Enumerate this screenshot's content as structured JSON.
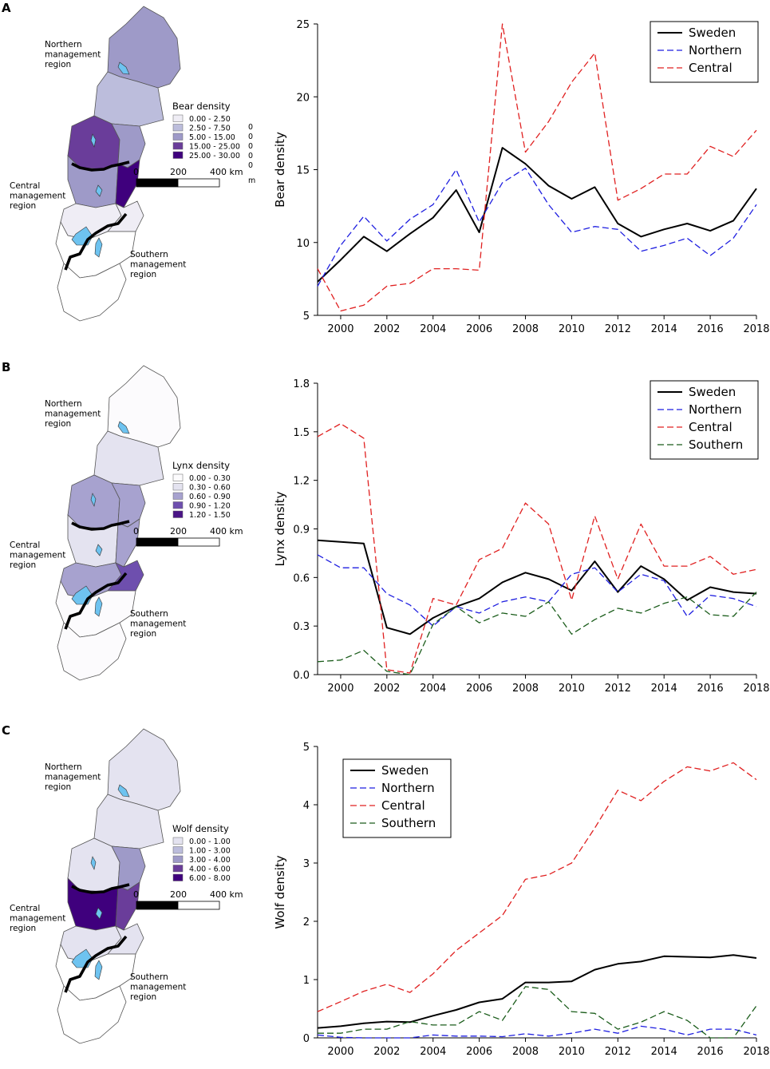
{
  "panels": [
    {
      "id": "A",
      "letter": "A",
      "map": {
        "legend_title": "Bear density",
        "legend_items": [
          "0.00 -   2.50",
          "2.50 -   7.50",
          "5.00 - 15.00",
          "15.00 - 25.00",
          "25.00 - 30.00"
        ],
        "legend_colors": [
          "#efedf5",
          "#bcbddc",
          "#9e9ac8",
          "#6a3d9a",
          "#3f007d"
        ],
        "stray_zeros": [
          "0",
          "0",
          "0",
          "0",
          "0"
        ],
        "stray_m": "m",
        "scale_labels": [
          "0",
          "200",
          "400 km"
        ],
        "region_labels": {
          "northern": [
            "Northern",
            "management",
            "region"
          ],
          "central": [
            "Central",
            "management",
            "region"
          ],
          "southern": [
            "Southern",
            "management",
            "region"
          ]
        },
        "fills": [
          "#9e9ac8",
          "#bcbddc",
          "#6a3d9a",
          "#9e9ac8",
          "#9e9ac8",
          "#3f007d",
          "#efedf5",
          "#efedf5",
          "#ffffff",
          "#ffffff"
        ]
      }
    },
    {
      "id": "B",
      "letter": "B",
      "map": {
        "legend_title": "Lynx density",
        "legend_items": [
          "0.00 - 0.30",
          "0.30 - 0.60",
          "0.60 - 0.90",
          "0.90 - 1.20",
          "1.20 - 1.50"
        ],
        "legend_colors": [
          "#fcfbfd",
          "#e4e3f0",
          "#a7a2cf",
          "#6e4fae",
          "#4a1486"
        ],
        "scale_labels": [
          "0",
          "200",
          "400 km"
        ],
        "region_labels": {
          "northern": [
            "Northern",
            "management",
            "region"
          ],
          "central": [
            "Central",
            "management",
            "region"
          ],
          "southern": [
            "Southern",
            "management",
            "region"
          ]
        },
        "fills": [
          "#fcfbfd",
          "#e4e3f0",
          "#a7a2cf",
          "#a7a2cf",
          "#e4e3f0",
          "#a7a2cf",
          "#a7a2cf",
          "#6e4fae",
          "#fcfbfd",
          "#fcfbfd"
        ]
      }
    },
    {
      "id": "C",
      "letter": "C",
      "map": {
        "legend_title": "Wolf density",
        "legend_items": [
          "0.00 - 1.00",
          "1.00 - 3.00",
          "3.00 - 4.00",
          "4.00 - 6.00",
          "6.00 - 8.00"
        ],
        "legend_colors": [
          "#e4e3f0",
          "#bcbddc",
          "#9e9ac8",
          "#6a3d9a",
          "#3f007d"
        ],
        "scale_labels": [
          "0",
          "200",
          "400 km"
        ],
        "region_labels": {
          "northern": [
            "Northern",
            "management",
            "region"
          ],
          "central": [
            "Central",
            "management",
            "region"
          ],
          "southern": [
            "Southern",
            "management",
            "region"
          ]
        },
        "fills": [
          "#e4e3f0",
          "#e4e3f0",
          "#e4e3f0",
          "#9e9ac8",
          "#3f007d",
          "#6a3d9a",
          "#e4e3f0",
          "#e4e3f0",
          "#ffffff",
          "#ffffff"
        ]
      }
    }
  ],
  "chart_data": [
    {
      "type": "line",
      "title": "",
      "xlabel": "",
      "ylabel": "Bear density",
      "xlim": [
        1999,
        2018
      ],
      "ylim": [
        5,
        25
      ],
      "xticks": [
        2000,
        2002,
        2004,
        2006,
        2008,
        2010,
        2012,
        2014,
        2016,
        2018
      ],
      "yticks": [
        5,
        10,
        15,
        20,
        25
      ],
      "x": [
        1999,
        2000,
        2001,
        2002,
        2003,
        2004,
        2005,
        2006,
        2007,
        2008,
        2009,
        2010,
        2011,
        2012,
        2013,
        2014,
        2015,
        2016,
        2017,
        2018
      ],
      "legend_position": "top-right",
      "series": [
        {
          "name": "Sweden",
          "color": "#000000",
          "dash": "solid",
          "values": [
            7.3,
            8.8,
            10.4,
            9.4,
            10.6,
            11.7,
            13.6,
            10.7,
            16.5,
            15.4,
            13.9,
            13.0,
            13.8,
            11.3,
            10.4,
            10.9,
            11.3,
            10.8,
            11.5,
            13.7
          ]
        },
        {
          "name": "Northern",
          "color": "#1f1fe0",
          "dash": "dashed",
          "values": [
            7.0,
            9.8,
            11.8,
            10.1,
            11.6,
            12.6,
            15.0,
            11.4,
            14.1,
            15.1,
            12.6,
            10.7,
            11.1,
            10.9,
            9.4,
            9.8,
            10.3,
            9.1,
            10.3,
            12.6
          ]
        },
        {
          "name": "Central",
          "color": "#e02020",
          "dash": "dashed",
          "values": [
            8.2,
            5.3,
            5.7,
            7.0,
            7.2,
            8.2,
            8.2,
            8.1,
            25.0,
            16.2,
            18.3,
            21.0,
            23.0,
            12.9,
            13.7,
            14.7,
            14.7,
            16.6,
            15.9,
            17.7
          ]
        }
      ]
    },
    {
      "type": "line",
      "title": "",
      "xlabel": "",
      "ylabel": "Lynx density",
      "xlim": [
        1999,
        2018
      ],
      "ylim": [
        0,
        1.8
      ],
      "xticks": [
        2000,
        2002,
        2004,
        2006,
        2008,
        2010,
        2012,
        2014,
        2016,
        2018
      ],
      "yticks": [
        0.0,
        0.3,
        0.6,
        0.9,
        1.2,
        1.5,
        1.8
      ],
      "x": [
        1999,
        2000,
        2001,
        2002,
        2003,
        2004,
        2005,
        2006,
        2007,
        2008,
        2009,
        2010,
        2011,
        2012,
        2013,
        2014,
        2015,
        2016,
        2017,
        2018
      ],
      "legend_position": "top-right",
      "series": [
        {
          "name": "Sweden",
          "color": "#000000",
          "dash": "solid",
          "values": [
            0.83,
            0.82,
            0.81,
            0.29,
            0.25,
            0.35,
            0.42,
            0.47,
            0.57,
            0.63,
            0.59,
            0.52,
            0.7,
            0.51,
            0.67,
            0.59,
            0.46,
            0.54,
            0.51,
            0.5
          ]
        },
        {
          "name": "Northern",
          "color": "#1f1fe0",
          "dash": "dashed",
          "values": [
            0.74,
            0.66,
            0.66,
            0.5,
            0.43,
            0.3,
            0.42,
            0.38,
            0.45,
            0.48,
            0.45,
            0.62,
            0.66,
            0.51,
            0.62,
            0.58,
            0.36,
            0.49,
            0.47,
            0.42
          ]
        },
        {
          "name": "Central",
          "color": "#e02020",
          "dash": "dashed",
          "values": [
            1.47,
            1.55,
            1.46,
            0.03,
            0.01,
            0.47,
            0.43,
            0.71,
            0.78,
            1.06,
            0.93,
            0.46,
            0.98,
            0.59,
            0.93,
            0.67,
            0.67,
            0.73,
            0.62,
            0.65
          ]
        },
        {
          "name": "Southern",
          "color": "#1a5c1a",
          "dash": "dashed",
          "values": [
            0.08,
            0.09,
            0.15,
            0.02,
            0.0,
            0.31,
            0.42,
            0.32,
            0.38,
            0.36,
            0.45,
            0.25,
            0.34,
            0.41,
            0.38,
            0.44,
            0.48,
            0.37,
            0.36,
            0.51
          ]
        }
      ]
    },
    {
      "type": "line",
      "title": "",
      "xlabel": "",
      "ylabel": "Wolf density",
      "xlim": [
        1999,
        2018
      ],
      "ylim": [
        0,
        5
      ],
      "xticks": [
        2000,
        2002,
        2004,
        2006,
        2008,
        2010,
        2012,
        2014,
        2016,
        2018
      ],
      "yticks": [
        0,
        1,
        2,
        3,
        4,
        5
      ],
      "x": [
        1999,
        2000,
        2001,
        2002,
        2003,
        2004,
        2005,
        2006,
        2007,
        2008,
        2009,
        2010,
        2011,
        2012,
        2013,
        2014,
        2015,
        2016,
        2017,
        2018
      ],
      "legend_position": "top-left",
      "series": [
        {
          "name": "Sweden",
          "color": "#000000",
          "dash": "solid",
          "values": [
            0.17,
            0.2,
            0.25,
            0.28,
            0.27,
            0.38,
            0.48,
            0.61,
            0.67,
            0.95,
            0.95,
            0.97,
            1.17,
            1.27,
            1.31,
            1.4,
            1.39,
            1.38,
            1.42,
            1.37
          ]
        },
        {
          "name": "Northern",
          "color": "#1f1fe0",
          "dash": "dashed",
          "values": [
            0.05,
            0.01,
            0.0,
            0.0,
            0.0,
            0.05,
            0.03,
            0.03,
            0.02,
            0.07,
            0.03,
            0.08,
            0.15,
            0.08,
            0.2,
            0.15,
            0.05,
            0.15,
            0.15,
            0.05
          ]
        },
        {
          "name": "Central",
          "color": "#e02020",
          "dash": "dashed",
          "values": [
            0.45,
            0.62,
            0.8,
            0.92,
            0.78,
            1.1,
            1.5,
            1.8,
            2.1,
            2.72,
            2.8,
            3.0,
            3.6,
            4.25,
            4.07,
            4.4,
            4.65,
            4.58,
            4.72,
            4.43
          ]
        },
        {
          "name": "Southern",
          "color": "#1a5c1a",
          "dash": "dashed",
          "values": [
            0.08,
            0.08,
            0.15,
            0.15,
            0.28,
            0.22,
            0.22,
            0.45,
            0.3,
            0.88,
            0.83,
            0.45,
            0.42,
            0.15,
            0.27,
            0.45,
            0.3,
            0.0,
            0.0,
            0.55
          ]
        }
      ]
    }
  ]
}
